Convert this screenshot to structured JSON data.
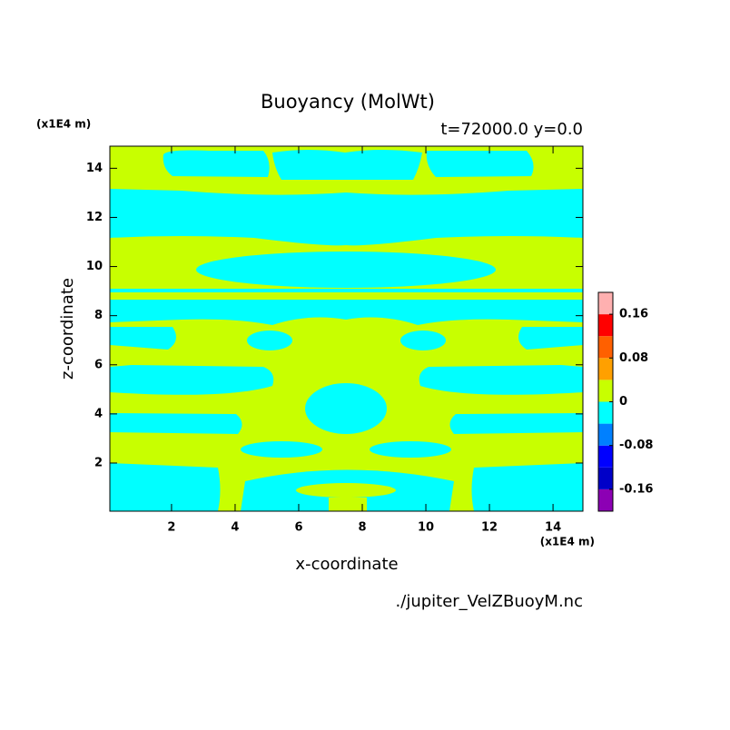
{
  "chart_data": {
    "type": "contour",
    "title": "Buoyancy (MolWt)",
    "subtitle": "t=72000.0 y=0.0",
    "y_unit": "(x1E4 m)",
    "x_unit": "(x1E4 m)",
    "x_label": "x-coordinate",
    "y_label": "z-coordinate",
    "source": "./jupiter_VelZBuoyM.nc",
    "xlim": [
      0.06,
      14.94
    ],
    "ylim": [
      0.04,
      14.9
    ],
    "xticks": [
      2,
      4,
      6,
      8,
      10,
      12,
      14
    ],
    "yticks": [
      2,
      4,
      6,
      8,
      10,
      12,
      14
    ],
    "colorbar": {
      "levels": [
        -0.2,
        -0.16,
        -0.12,
        -0.08,
        -0.04,
        0,
        0.04,
        0.08,
        0.12,
        0.16,
        0.2
      ],
      "colors": [
        "#8c00b4",
        "#0000c8",
        "#0000ff",
        "#0080ff",
        "#00ffff",
        "#c8ff00",
        "#ffa000",
        "#ff6000",
        "#ff0000",
        "#ffb0b0"
      ],
      "ticks": [
        -0.16,
        -0.08,
        0,
        0.08,
        0.16
      ]
    }
  }
}
